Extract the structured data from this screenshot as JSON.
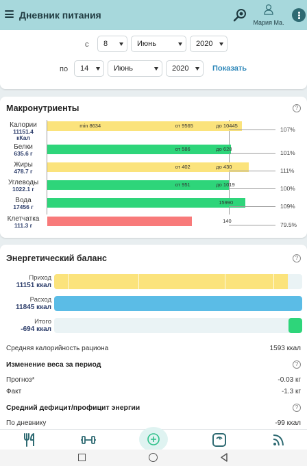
{
  "header": {
    "title": "Дневник питания",
    "user_name": "Мария Ма."
  },
  "date_filter": {
    "from_label": "с",
    "from_day": "8",
    "from_month": "Июнь",
    "from_year": "2020",
    "to_label": "по",
    "to_day": "14",
    "to_month": "Июнь",
    "to_year": "2020",
    "show_label": "Показать"
  },
  "macros": {
    "title": "Макронутриенты",
    "help": "?",
    "rows": [
      {
        "name": "Калории",
        "value": "11151.4",
        "unit": "кКал",
        "percent": "107%",
        "fill": 1.07,
        "color": "#fbe37c",
        "labels": [
          "min 8634",
          "от 9565",
          "до 10445"
        ]
      },
      {
        "name": "Белки",
        "value": "635.6 г",
        "percent": "101%",
        "fill": 1.01,
        "color": "#2ed57a",
        "labels": [
          "от 586",
          "до 628"
        ]
      },
      {
        "name": "Жиры",
        "value": "478.7 г",
        "percent": "111%",
        "fill": 1.11,
        "color": "#fbe37c",
        "labels": [
          "от 402",
          "до 430"
        ]
      },
      {
        "name": "Углеводы",
        "value": "1022.1 г",
        "percent": "100%",
        "fill": 1.0,
        "color": "#2ed57a",
        "labels": [
          "от 951",
          "до 1019"
        ]
      },
      {
        "name": "Вода",
        "value": "17456 г",
        "percent": "109%",
        "fill": 1.09,
        "color": "#2ed57a",
        "labels": [
          "15990"
        ]
      },
      {
        "name": "Клетчатка",
        "value": "111.3 г",
        "percent": "79.5%",
        "fill": 0.795,
        "color": "#f87a7a",
        "labels": [
          "140"
        ]
      }
    ]
  },
  "energy": {
    "title": "Энергетический баланс",
    "help": "?",
    "income_label": "Приход",
    "income_value": "11151 ккал",
    "expense_label": "Расход",
    "expense_value": "11845 ккал",
    "total_label": "Итого",
    "total_value": "-694 ккал",
    "income_fraction": 0.941,
    "expense_fraction": 1.0,
    "colors": {
      "income": "#fbe37c",
      "expense": "#5bbce6",
      "total": "#2ed57a"
    },
    "avg_label": "Средняя калорийность рациона",
    "avg_value": "1593 ккал",
    "weight_title": "Изменение веса за период",
    "forecast_label": "Прогноз*",
    "forecast_value": "-0.03 кг",
    "fact_label": "Факт",
    "fact_value": "-1.3 кг",
    "deficit_title": "Средний дефицит/профицит энергии",
    "diary_label": "По дневнику",
    "diary_value": "-99 ккал"
  },
  "nav": {
    "icons": [
      "fork-knife-icon",
      "dumbbell-icon",
      "add-circle-icon",
      "scale-icon",
      "rss-icon"
    ]
  }
}
